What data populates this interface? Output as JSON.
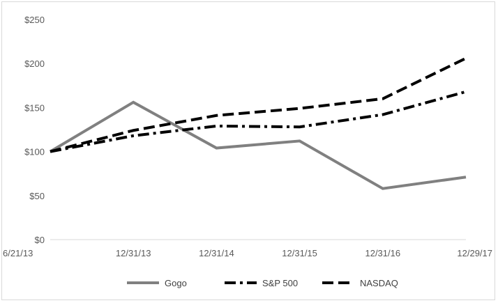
{
  "chart_data": {
    "type": "line",
    "categories": [
      "6/21/13",
      "12/31/13",
      "12/31/14",
      "12/31/15",
      "12/31/16",
      "12/29/17"
    ],
    "yticks": [
      "$0",
      "$50",
      "$100",
      "$150",
      "$200",
      "$250"
    ],
    "ylim": [
      0,
      250
    ],
    "grid": false,
    "legend_position": "bottom",
    "series": [
      {
        "name": "Gogo",
        "values": [
          100,
          156,
          104,
          112,
          58,
          71
        ],
        "color": "#808080",
        "dash": "solid"
      },
      {
        "name": "S&P 500",
        "values": [
          100,
          118,
          129,
          128,
          142,
          168
        ],
        "color": "#000000",
        "dash": "dashdot"
      },
      {
        "name": "NASDAQ",
        "values": [
          100,
          124,
          141,
          149,
          160,
          206
        ],
        "color": "#000000",
        "dash": "dashed"
      }
    ]
  }
}
